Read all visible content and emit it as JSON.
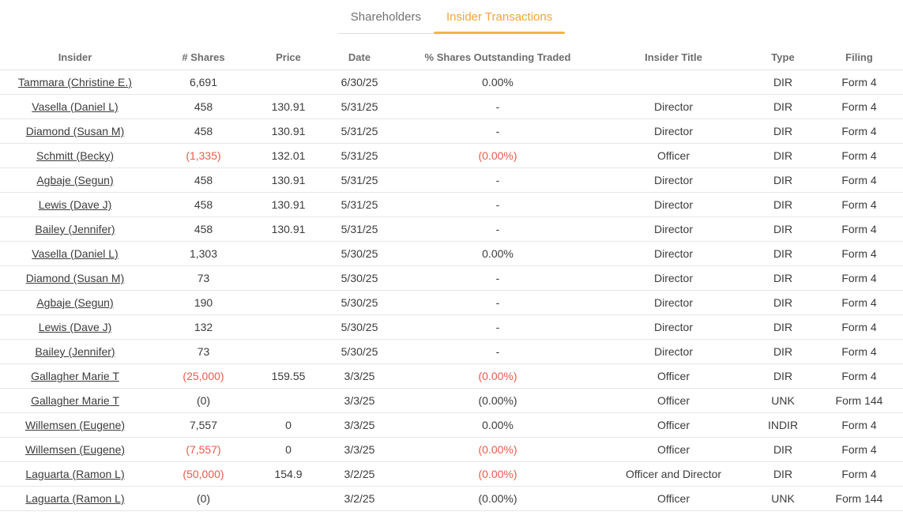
{
  "colors": {
    "accent_text": "#f2a43c",
    "accent_line": "#efb744",
    "negative": "#e65b4e"
  },
  "tabs": [
    {
      "label": "Shareholders",
      "active": false
    },
    {
      "label": "Insider Transactions",
      "active": true
    }
  ],
  "table": {
    "columns": [
      "Insider",
      "# Shares",
      "Price",
      "Date",
      "% Shares Outstanding Traded",
      "Insider Title",
      "Type",
      "Filing"
    ],
    "rows": [
      {
        "insider": "Tammara (Christine E.)",
        "shares": "6,691",
        "shares_neg": false,
        "price": "",
        "date": "6/30/25",
        "pct": "0.00%",
        "pct_neg": false,
        "title": "",
        "type": "DIR",
        "filing": "Form 4"
      },
      {
        "insider": "Vasella (Daniel L)",
        "shares": "458",
        "shares_neg": false,
        "price": "130.91",
        "date": "5/31/25",
        "pct": "-",
        "pct_neg": false,
        "title": "Director",
        "type": "DIR",
        "filing": "Form 4"
      },
      {
        "insider": "Diamond (Susan M)",
        "shares": "458",
        "shares_neg": false,
        "price": "130.91",
        "date": "5/31/25",
        "pct": "-",
        "pct_neg": false,
        "title": "Director",
        "type": "DIR",
        "filing": "Form 4"
      },
      {
        "insider": "Schmitt (Becky)",
        "shares": "(1,335)",
        "shares_neg": true,
        "price": "132.01",
        "date": "5/31/25",
        "pct": "(0.00%)",
        "pct_neg": true,
        "title": "Officer",
        "type": "DIR",
        "filing": "Form 4"
      },
      {
        "insider": "Agbaje (Segun)",
        "shares": "458",
        "shares_neg": false,
        "price": "130.91",
        "date": "5/31/25",
        "pct": "-",
        "pct_neg": false,
        "title": "Director",
        "type": "DIR",
        "filing": "Form 4"
      },
      {
        "insider": "Lewis (Dave J)",
        "shares": "458",
        "shares_neg": false,
        "price": "130.91",
        "date": "5/31/25",
        "pct": "-",
        "pct_neg": false,
        "title": "Director",
        "type": "DIR",
        "filing": "Form 4"
      },
      {
        "insider": "Bailey (Jennifer)",
        "shares": "458",
        "shares_neg": false,
        "price": "130.91",
        "date": "5/31/25",
        "pct": "-",
        "pct_neg": false,
        "title": "Director",
        "type": "DIR",
        "filing": "Form 4"
      },
      {
        "insider": "Vasella (Daniel L)",
        "shares": "1,303",
        "shares_neg": false,
        "price": "",
        "date": "5/30/25",
        "pct": "0.00%",
        "pct_neg": false,
        "title": "Director",
        "type": "DIR",
        "filing": "Form 4"
      },
      {
        "insider": "Diamond (Susan M)",
        "shares": "73",
        "shares_neg": false,
        "price": "",
        "date": "5/30/25",
        "pct": "-",
        "pct_neg": false,
        "title": "Director",
        "type": "DIR",
        "filing": "Form 4"
      },
      {
        "insider": "Agbaje (Segun)",
        "shares": "190",
        "shares_neg": false,
        "price": "",
        "date": "5/30/25",
        "pct": "-",
        "pct_neg": false,
        "title": "Director",
        "type": "DIR",
        "filing": "Form 4"
      },
      {
        "insider": "Lewis (Dave J)",
        "shares": "132",
        "shares_neg": false,
        "price": "",
        "date": "5/30/25",
        "pct": "-",
        "pct_neg": false,
        "title": "Director",
        "type": "DIR",
        "filing": "Form 4"
      },
      {
        "insider": "Bailey (Jennifer)",
        "shares": "73",
        "shares_neg": false,
        "price": "",
        "date": "5/30/25",
        "pct": "-",
        "pct_neg": false,
        "title": "Director",
        "type": "DIR",
        "filing": "Form 4"
      },
      {
        "insider": "Gallagher Marie T",
        "shares": "(25,000)",
        "shares_neg": true,
        "price": "159.55",
        "date": "3/3/25",
        "pct": "(0.00%)",
        "pct_neg": true,
        "title": "Officer",
        "type": "DIR",
        "filing": "Form 4"
      },
      {
        "insider": "Gallagher Marie T",
        "shares": "(0)",
        "shares_neg": false,
        "price": "",
        "date": "3/3/25",
        "pct": "(0.00%)",
        "pct_neg": false,
        "title": "Officer",
        "type": "UNK",
        "filing": "Form 144"
      },
      {
        "insider": "Willemsen (Eugene)",
        "shares": "7,557",
        "shares_neg": false,
        "price": "0",
        "date": "3/3/25",
        "pct": "0.00%",
        "pct_neg": false,
        "title": "Officer",
        "type": "INDIR",
        "filing": "Form 4"
      },
      {
        "insider": "Willemsen (Eugene)",
        "shares": "(7,557)",
        "shares_neg": true,
        "price": "0",
        "date": "3/3/25",
        "pct": "(0.00%)",
        "pct_neg": true,
        "title": "Officer",
        "type": "DIR",
        "filing": "Form 4"
      },
      {
        "insider": "Laguarta (Ramon L)",
        "shares": "(50,000)",
        "shares_neg": true,
        "price": "154.9",
        "date": "3/2/25",
        "pct": "(0.00%)",
        "pct_neg": true,
        "title": "Officer and Director",
        "type": "DIR",
        "filing": "Form 4"
      },
      {
        "insider": "Laguarta (Ramon L)",
        "shares": "(0)",
        "shares_neg": false,
        "price": "",
        "date": "3/2/25",
        "pct": "(0.00%)",
        "pct_neg": false,
        "title": "Officer",
        "type": "UNK",
        "filing": "Form 144"
      }
    ]
  }
}
